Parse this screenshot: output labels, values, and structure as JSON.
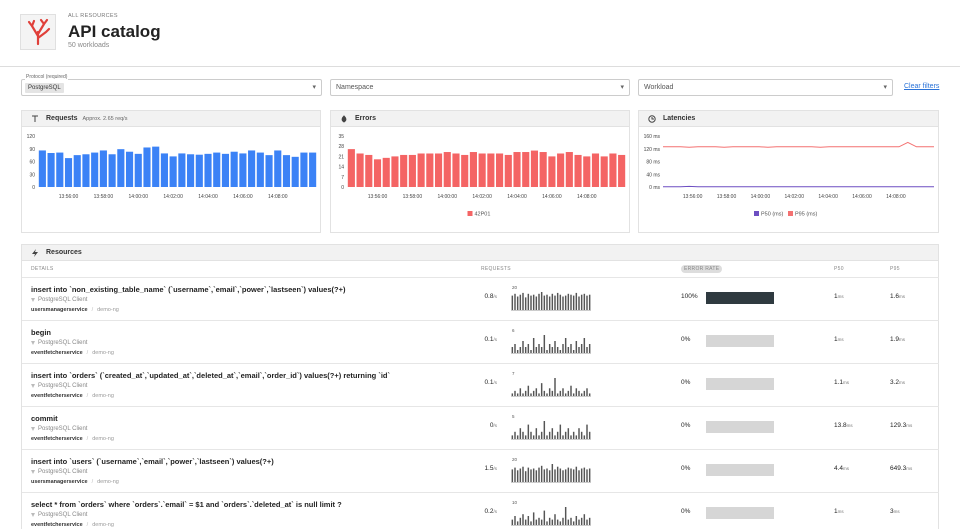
{
  "header": {
    "breadcrumb": "ALL RESOURCES",
    "title": "API catalog",
    "subtitle": "50 workloads"
  },
  "filters": {
    "protocol_label": "Protocol (required)",
    "protocol_value": "PostgreSQL",
    "namespace": "Namespace",
    "workload": "Workload",
    "clear": "Clear filters"
  },
  "chart_data": [
    {
      "type": "bar",
      "title": "Requests",
      "subtitle": "Approx. 2.65 req/s",
      "categories": [
        null,
        null,
        null,
        "13:56:00",
        null,
        null,
        null,
        "13:58:00",
        null,
        null,
        null,
        "14:00:00",
        null,
        null,
        null,
        "14:02:00",
        null,
        null,
        null,
        "14:04:00",
        null,
        null,
        null,
        "14:06:00",
        null,
        null,
        null,
        "14:08:00",
        null,
        null,
        null,
        null
      ],
      "series": [
        {
          "name": null,
          "color": "#3b82f6",
          "values": [
            86,
            80,
            81,
            68,
            75,
            77,
            81,
            86,
            77,
            89,
            83,
            78,
            93,
            95,
            79,
            72,
            79,
            77,
            76,
            78,
            81,
            78,
            83,
            79,
            86,
            81,
            75,
            86,
            75,
            71,
            81,
            81
          ]
        }
      ],
      "ylim": [
        0,
        120
      ],
      "yticks": [
        0,
        30,
        60,
        90,
        120
      ],
      "legend": false
    },
    {
      "type": "bar",
      "title": "Errors",
      "categories": [
        null,
        null,
        null,
        "13:56:00",
        null,
        null,
        null,
        "13:58:00",
        null,
        null,
        null,
        "14:00:00",
        null,
        null,
        null,
        "14:02:00",
        null,
        null,
        null,
        "14:04:00",
        null,
        null,
        null,
        "14:06:00",
        null,
        null,
        null,
        "14:08:00",
        null,
        null,
        null,
        null
      ],
      "series": [
        {
          "name": "42P01",
          "color": "#f46464",
          "values": [
            26,
            23,
            22,
            19,
            20,
            21,
            22,
            22,
            23,
            23,
            23,
            24,
            23,
            22,
            24,
            23,
            23,
            23,
            22,
            24,
            24,
            25,
            24,
            21,
            23,
            24,
            22,
            21,
            23,
            21,
            23,
            22
          ]
        }
      ],
      "ylim": [
        0,
        35
      ],
      "yticks": [
        0,
        7,
        14,
        21,
        28,
        35
      ],
      "legend": true
    },
    {
      "type": "line",
      "title": "Latencies",
      "categories": [
        null,
        null,
        null,
        "13:56:00",
        null,
        null,
        null,
        "13:58:00",
        null,
        null,
        null,
        "14:00:00",
        null,
        null,
        null,
        "14:02:00",
        null,
        null,
        null,
        "14:04:00",
        null,
        null,
        null,
        "14:06:00",
        null,
        null,
        null,
        "14:08:00",
        null,
        null,
        null,
        null
      ],
      "series": [
        {
          "name": "P50 (ms)",
          "color": "#6d4fc2",
          "values": [
            1,
            1,
            1,
            2,
            1,
            1,
            1,
            1,
            1,
            1,
            1,
            1,
            1,
            1,
            1,
            1,
            1,
            1,
            1,
            1,
            1,
            1,
            1,
            1,
            1,
            1,
            1,
            1,
            1,
            1,
            1,
            1
          ]
        },
        {
          "name": "P95 (ms)",
          "color": "#f47171",
          "values": [
            126,
            126,
            126,
            125,
            126,
            126,
            126,
            125,
            126,
            126,
            126,
            126,
            125,
            126,
            126,
            126,
            126,
            126,
            125,
            126,
            126,
            126,
            126,
            126,
            126,
            126,
            126,
            126,
            140,
            126,
            126,
            126
          ]
        }
      ],
      "ylim": [
        0,
        160
      ],
      "yticks": [
        {
          "value": 0,
          "label": "0 ms"
        },
        {
          "value": 40,
          "label": "40 ms"
        },
        {
          "value": 80,
          "label": "80 ms"
        },
        {
          "value": 120,
          "label": "120 ms"
        },
        {
          "value": 160,
          "label": "160 ms"
        }
      ],
      "legend": true
    }
  ],
  "table": {
    "title": "Resources",
    "columns": [
      "DETAILS",
      "REQUESTS",
      "ERROR RATE",
      "P50",
      "P95"
    ],
    "rows": [
      {
        "query": "insert into `non_existing_table_name` (`username`,`email`,`power`,`lastseen`) values(?+)",
        "client": "PostgreSQL Client",
        "service": "usersmanagerservice",
        "namespace": "demo-ng",
        "requests": "0.8",
        "requests_unit": "/s",
        "spark_max": 20,
        "spark": [
          16,
          18,
          15,
          17,
          19,
          14,
          18,
          16,
          17,
          15,
          18,
          20,
          16,
          17,
          15,
          18,
          16,
          19,
          17,
          15,
          16,
          18,
          17,
          16,
          19,
          15,
          17,
          18,
          16,
          17
        ],
        "error_rate": 100,
        "error_rate_label": "100%",
        "p50": "1",
        "p50_unit": "ms",
        "p95": "1.6",
        "p95_unit": "ms"
      },
      {
        "query": "begin",
        "client": "PostgreSQL Client",
        "service": "eventfetcherservice",
        "namespace": "demo-ng",
        "requests": "0.1",
        "requests_unit": "/s",
        "spark_max": 6,
        "spark": [
          2,
          3,
          1,
          2,
          4,
          2,
          3,
          1,
          5,
          2,
          3,
          2,
          6,
          1,
          3,
          2,
          4,
          2,
          1,
          3,
          5,
          2,
          3,
          1,
          4,
          2,
          3,
          5,
          2,
          3
        ],
        "error_rate": 0,
        "error_rate_label": "0%",
        "p50": "1",
        "p50_unit": "ms",
        "p95": "1.9",
        "p95_unit": "ms"
      },
      {
        "query": "insert into `orders` (`created_at`,`updated_at`,`deleted_at`,`email`,`order_id`) values(?+) returning `id`",
        "client": "PostgreSQL Client",
        "service": "eventfetcherservice",
        "namespace": "demo-ng",
        "requests": "0.1",
        "requests_unit": "/s",
        "spark_max": 7,
        "spark": [
          1,
          2,
          1,
          3,
          1,
          2,
          4,
          1,
          2,
          3,
          1,
          5,
          2,
          1,
          3,
          2,
          7,
          1,
          2,
          3,
          1,
          2,
          4,
          1,
          3,
          2,
          1,
          2,
          3,
          1
        ],
        "error_rate": 0,
        "error_rate_label": "0%",
        "p50": "1.1",
        "p50_unit": "ms",
        "p95": "3.2",
        "p95_unit": "ms"
      },
      {
        "query": "commit",
        "client": "PostgreSQL Client",
        "service": "eventfetcherservice",
        "namespace": "demo-ng",
        "requests": "0",
        "requests_unit": "/s",
        "spark_max": 5,
        "spark": [
          1,
          2,
          1,
          3,
          2,
          1,
          4,
          2,
          1,
          3,
          1,
          2,
          5,
          1,
          2,
          3,
          1,
          2,
          4,
          1,
          2,
          3,
          1,
          2,
          1,
          3,
          2,
          1,
          4,
          2
        ],
        "error_rate": 0,
        "error_rate_label": "0%",
        "p50": "13.8",
        "p50_unit": "ms",
        "p95": "129.3",
        "p95_unit": "ms"
      },
      {
        "query": "insert into `users` (`username`,`email`,`power`,`lastseen`) values(?+)",
        "client": "PostgreSQL Client",
        "service": "usersmanagerservice",
        "namespace": "demo-ng",
        "requests": "1.5",
        "requests_unit": "/s",
        "spark_max": 20,
        "spark": [
          14,
          16,
          13,
          15,
          17,
          12,
          16,
          14,
          15,
          13,
          16,
          18,
          14,
          15,
          13,
          20,
          14,
          17,
          15,
          13,
          14,
          16,
          15,
          14,
          17,
          13,
          15,
          16,
          14,
          15
        ],
        "error_rate": 0,
        "error_rate_label": "0%",
        "p50": "4.4",
        "p50_unit": "ms",
        "p95": "649.3",
        "p95_unit": "ms"
      },
      {
        "query": "select * from `orders` where `orders`.`email` = $1 and `orders`.`deleted_at` is null limit ?",
        "client": "PostgreSQL Client",
        "service": "eventfetcherservice",
        "namespace": "demo-ng",
        "requests": "0.2",
        "requests_unit": "/s",
        "spark_max": 10,
        "spark": [
          3,
          5,
          2,
          4,
          6,
          3,
          5,
          2,
          7,
          3,
          4,
          3,
          8,
          2,
          4,
          3,
          6,
          3,
          2,
          4,
          10,
          3,
          4,
          2,
          5,
          3,
          4,
          6,
          3,
          4
        ],
        "error_rate": 0,
        "error_rate_label": "0%",
        "p50": "1",
        "p50_unit": "ms",
        "p95": "3",
        "p95_unit": "ms"
      }
    ]
  }
}
